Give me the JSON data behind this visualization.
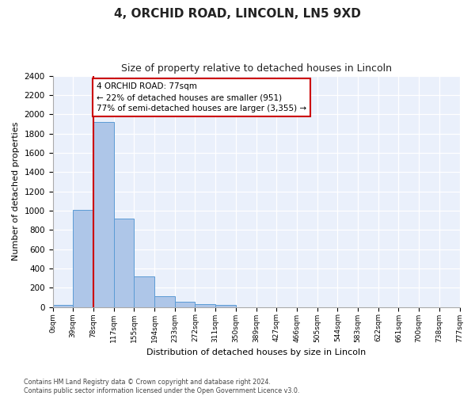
{
  "title1": "4, ORCHID ROAD, LINCOLN, LN5 9XD",
  "title2": "Size of property relative to detached houses in Lincoln",
  "xlabel": "Distribution of detached houses by size in Lincoln",
  "ylabel": "Number of detached properties",
  "bins": [
    "0sqm",
    "39sqm",
    "78sqm",
    "117sqm",
    "155sqm",
    "194sqm",
    "233sqm",
    "272sqm",
    "311sqm",
    "350sqm",
    "389sqm",
    "427sqm",
    "466sqm",
    "505sqm",
    "544sqm",
    "583sqm",
    "622sqm",
    "661sqm",
    "700sqm",
    "738sqm",
    "777sqm"
  ],
  "values": [
    20,
    1010,
    1920,
    920,
    315,
    110,
    55,
    30,
    20,
    0,
    0,
    0,
    0,
    0,
    0,
    0,
    0,
    0,
    0,
    0
  ],
  "bar_color": "#aec6e8",
  "bar_edge_color": "#5b9bd5",
  "vline_x": 2,
  "vline_color": "#cc0000",
  "annotation_text": "4 ORCHID ROAD: 77sqm\n← 22% of detached houses are smaller (951)\n77% of semi-detached houses are larger (3,355) →",
  "annotation_box_color": "#ffffff",
  "annotation_box_edge": "#cc0000",
  "ylim": [
    0,
    2400
  ],
  "yticks": [
    0,
    200,
    400,
    600,
    800,
    1000,
    1200,
    1400,
    1600,
    1800,
    2000,
    2200,
    2400
  ],
  "footer1": "Contains HM Land Registry data © Crown copyright and database right 2024.",
  "footer2": "Contains public sector information licensed under the Open Government Licence v3.0.",
  "bg_color": "#eaf0fb",
  "title1_fontsize": 11,
  "title2_fontsize": 9
}
